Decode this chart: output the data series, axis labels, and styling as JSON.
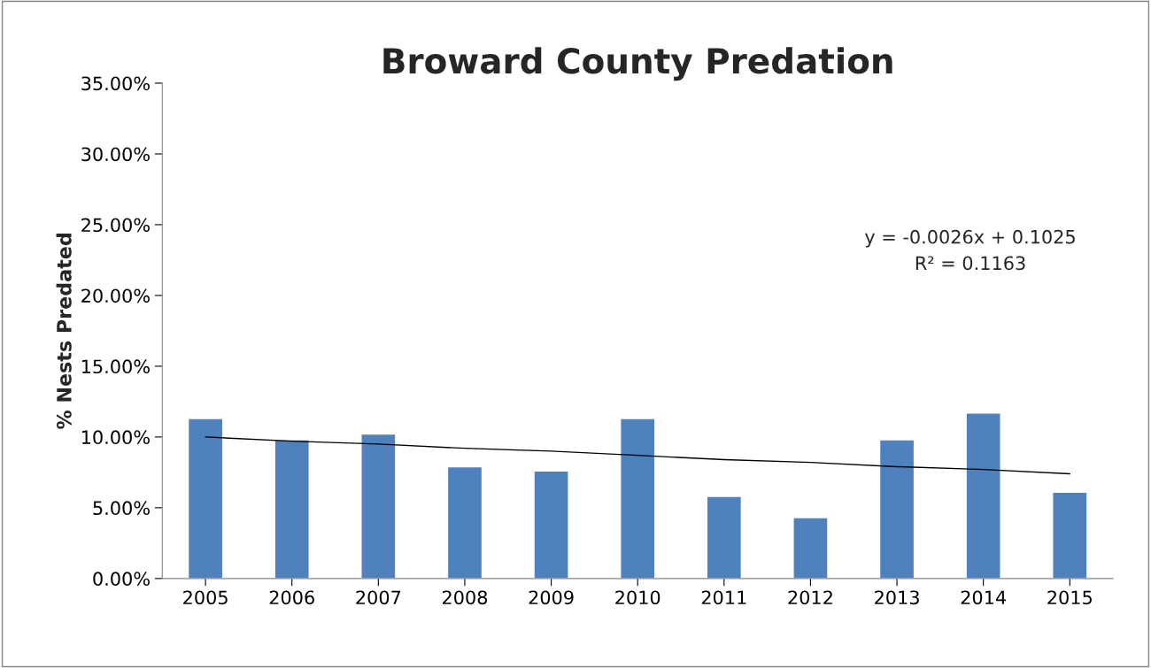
{
  "chart_data": {
    "type": "bar",
    "title": "Broward County Predation",
    "ylabel": "% Nests Predated",
    "categories": [
      "2005",
      "2006",
      "2007",
      "2008",
      "2009",
      "2010",
      "2011",
      "2012",
      "2013",
      "2014",
      "2015"
    ],
    "series": [
      {
        "color": "#4f81bd",
        "values": [
          11.3,
          9.8,
          10.2,
          7.9,
          7.6,
          11.3,
          5.8,
          4.3,
          9.8,
          11.7,
          6.1
        ]
      },
      {
        "type": "line",
        "color": "#000000",
        "values": [
          10.0,
          9.7,
          9.5,
          9.2,
          9.0,
          8.7,
          8.4,
          8.2,
          7.9,
          7.7,
          7.4
        ]
      }
    ],
    "ylim": [
      0,
      35
    ],
    "yticks": [
      {
        "value": 0,
        "label": "0.00%"
      },
      {
        "value": 5,
        "label": "5.00%"
      },
      {
        "value": 10,
        "label": "10.00%"
      },
      {
        "value": 15,
        "label": "15.00%"
      },
      {
        "value": 20,
        "label": "20.00%"
      },
      {
        "value": 25,
        "label": "25.00%"
      },
      {
        "value": 30,
        "label": "30.00%"
      },
      {
        "value": 35,
        "label": "35.00%"
      }
    ],
    "annotations": [
      "y = -0.0026x + 0.1025\nR² = 0.1163"
    ],
    "grid": false,
    "legend": false
  }
}
